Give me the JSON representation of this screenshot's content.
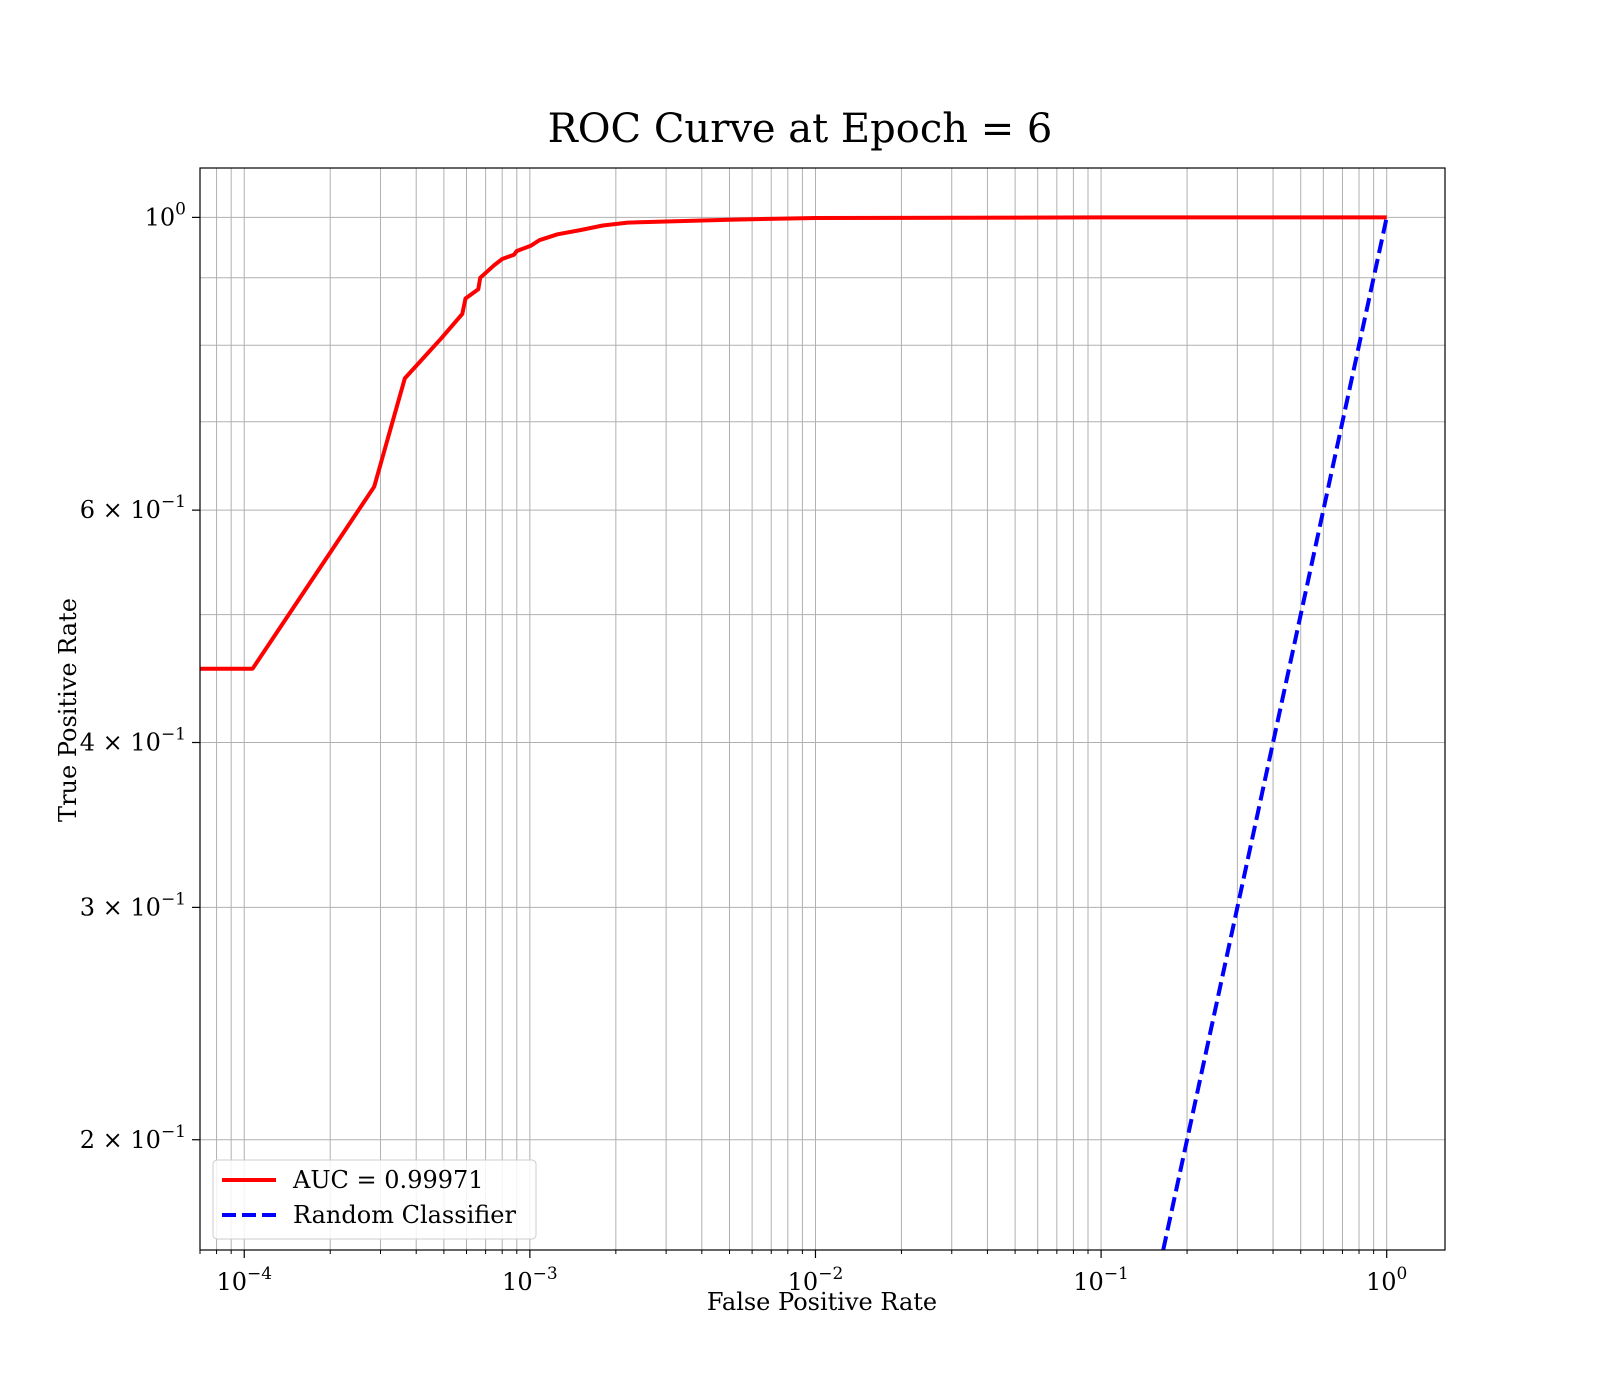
{
  "chart_data": {
    "type": "line",
    "title": "ROC Curve at Epoch = 6",
    "xlabel": "False Positive Rate",
    "ylabel": "True Positive Rate",
    "xscale": "log",
    "yscale": "log",
    "xlim": [
      7e-05,
      1.6
    ],
    "ylim": [
      0.165,
      1.09
    ],
    "grid": "major and minor",
    "legend_position": "lower-left",
    "x_ticks": [
      {
        "value": 0.0001,
        "base": "10",
        "exp": "−4"
      },
      {
        "value": 0.001,
        "base": "10",
        "exp": "−3"
      },
      {
        "value": 0.01,
        "base": "10",
        "exp": "−2"
      },
      {
        "value": 0.1,
        "base": "10",
        "exp": "−1"
      },
      {
        "value": 1,
        "base": "10",
        "exp": "0"
      }
    ],
    "y_ticks": [
      {
        "value": 1,
        "base": "10",
        "exp": "0"
      },
      {
        "value": 0.6,
        "base": "6 × 10",
        "exp": "−1"
      },
      {
        "value": 0.4,
        "base": "4 × 10",
        "exp": "−1"
      },
      {
        "value": 0.3,
        "base": "3 × 10",
        "exp": "−1"
      },
      {
        "value": 0.2,
        "base": "2 × 10",
        "exp": "−1"
      }
    ],
    "series": [
      {
        "name": "AUC = 0.99971",
        "color": "#ff0000",
        "style": "solid",
        "x": [
          7e-05,
          0.000107,
          0.000285,
          0.000365,
          0.00049,
          0.00058,
          0.000595,
          0.00066,
          0.00067,
          0.00075,
          0.0008,
          0.00088,
          0.0009,
          0.00101,
          0.00108,
          0.00125,
          0.0015,
          0.0018,
          0.0022,
          0.005,
          0.01,
          0.1,
          1
        ],
        "y": [
          0.455,
          0.455,
          0.625,
          0.755,
          0.81,
          0.845,
          0.868,
          0.882,
          0.9,
          0.92,
          0.93,
          0.937,
          0.943,
          0.952,
          0.961,
          0.971,
          0.978,
          0.986,
          0.991,
          0.996,
          0.999,
          1.0,
          1.0
        ]
      },
      {
        "name": "Random Classifier",
        "color": "#0000ff",
        "style": "dashed",
        "x": [
          0.165,
          1
        ],
        "y": [
          0.165,
          1
        ]
      }
    ]
  }
}
